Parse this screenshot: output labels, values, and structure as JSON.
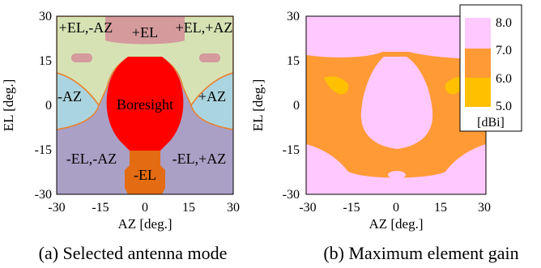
{
  "chart_data": [
    {
      "type": "heatmap",
      "caption": "(a) Selected antenna mode",
      "xlabel": "AZ [deg.]",
      "ylabel": "EL [deg.]",
      "xlim": [
        -30,
        30
      ],
      "ylim": [
        -30,
        30
      ],
      "xticks": [
        "-30",
        "-15",
        "0",
        "15",
        "30"
      ],
      "yticks": [
        "-30",
        "-15",
        "0",
        "15",
        "30"
      ],
      "grid": false,
      "regions": [
        {
          "label": "+EL",
          "color": "#d49a9c"
        },
        {
          "label": "+EL,-AZ",
          "color": "#d6e2b4"
        },
        {
          "label": "+EL,+AZ",
          "color": "#d6e2b4"
        },
        {
          "label": "-AZ",
          "color": "#aad4df"
        },
        {
          "label": "+AZ",
          "color": "#aad4df"
        },
        {
          "label": "Boresight",
          "color": "#ff0000"
        },
        {
          "label": "-EL,-AZ",
          "color": "#aaa0c6"
        },
        {
          "label": "-EL,+AZ",
          "color": "#aaa0c6"
        },
        {
          "label": "-EL",
          "color": "#e36b12"
        }
      ]
    },
    {
      "type": "heatmap",
      "caption": "(b) Maximum element gain",
      "xlabel": "AZ [deg.]",
      "ylabel": "EL [deg.]",
      "xlim": [
        -30,
        30
      ],
      "ylim": [
        -30,
        30
      ],
      "xticks": [
        "-30",
        "-15",
        "0",
        "15",
        "30"
      ],
      "yticks": [
        "-30",
        "-15",
        "0",
        "15",
        "30"
      ],
      "grid": false,
      "colorbar": {
        "placement": "top-right",
        "unit": "[dBi]",
        "ticks": [
          "8.0",
          "7.0",
          "6.0",
          "5.0"
        ],
        "bins": [
          {
            "range": [
              7.0,
              8.0
            ],
            "color": "#ffc8ff"
          },
          {
            "range": [
              6.0,
              7.0
            ],
            "color": "#ff9a35"
          },
          {
            "range": [
              5.0,
              6.0
            ],
            "color": "#ffc000"
          }
        ]
      }
    }
  ]
}
